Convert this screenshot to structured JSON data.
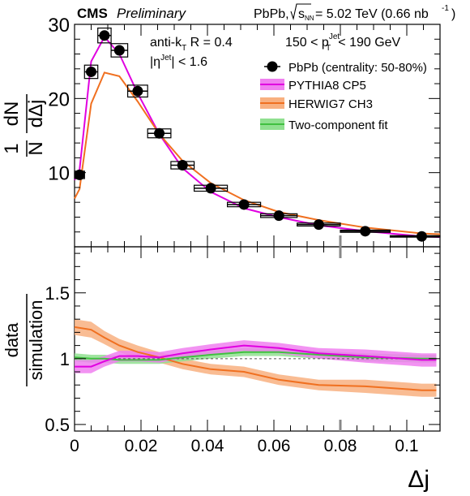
{
  "header": {
    "experiment": "CMS",
    "status": "Preliminary",
    "system": "PbPb,",
    "energy_prefix": "s",
    "energy_sub": "NN",
    "energy_value": "= 5.02 TeV (0.66 nb",
    "lumi_exp": "-1",
    "lumi_close": ")"
  },
  "annotations": {
    "algo_main": "anti-k",
    "algo_sub": "T",
    "algo_r": " R = 0.4",
    "eta_open": "|η",
    "eta_sup": "Jet",
    "eta_close": "| < 1.6",
    "pt_left": "150 < p",
    "pt_sup": "Jet",
    "pt_sub": "T",
    "pt_right": "< 190 GeV"
  },
  "colors": {
    "data": "#000000",
    "pythia": "#e000e0",
    "pythia_band": "#f080f0",
    "herwig": "#f07020",
    "herwig_band": "#f8b080",
    "fit": "#40c040",
    "fit_band": "#90e090"
  },
  "chart_data": [
    {
      "type": "line",
      "panel": "top",
      "ylabel_num": "1",
      "ylabel_den": "N",
      "ylabel_frac_num": "dN",
      "ylabel_frac_den": "dΔj",
      "xlim": [
        0,
        0.11
      ],
      "ylim": [
        0,
        30
      ],
      "yticks": [
        "10",
        "20",
        "30"
      ],
      "legend": {
        "placement": "top-right",
        "entries": [
          {
            "label": "PbPb (centrality: 50-80%)",
            "kind": "marker"
          },
          {
            "label": "PYTHIA8 CP5",
            "kind": "band",
            "series": "pythia"
          },
          {
            "label": "HERWIG7 CH3",
            "kind": "band",
            "series": "herwig"
          },
          {
            "label": "Two-component fit",
            "kind": "band",
            "series": "fit"
          }
        ]
      },
      "data_points": [
        {
          "x": 0.0015,
          "y": 9.7,
          "xlo": 0.0,
          "xhi": 0.003,
          "syst": 0.5
        },
        {
          "x": 0.005,
          "y": 23.6,
          "xlo": 0.003,
          "xhi": 0.007,
          "syst": 0.9
        },
        {
          "x": 0.009,
          "y": 28.5,
          "xlo": 0.007,
          "xhi": 0.011,
          "syst": 1.0
        },
        {
          "x": 0.0135,
          "y": 26.5,
          "xlo": 0.011,
          "xhi": 0.016,
          "syst": 0.9
        },
        {
          "x": 0.019,
          "y": 21.0,
          "xlo": 0.016,
          "xhi": 0.022,
          "syst": 0.8
        },
        {
          "x": 0.0255,
          "y": 15.3,
          "xlo": 0.022,
          "xhi": 0.029,
          "syst": 0.6
        },
        {
          "x": 0.0325,
          "y": 11.0,
          "xlo": 0.029,
          "xhi": 0.036,
          "syst": 0.5
        },
        {
          "x": 0.041,
          "y": 7.9,
          "xlo": 0.036,
          "xhi": 0.046,
          "syst": 0.4
        },
        {
          "x": 0.051,
          "y": 5.7,
          "xlo": 0.046,
          "xhi": 0.056,
          "syst": 0.3
        },
        {
          "x": 0.0615,
          "y": 4.2,
          "xlo": 0.056,
          "xhi": 0.067,
          "syst": 0.25
        },
        {
          "x": 0.0735,
          "y": 3.0,
          "xlo": 0.067,
          "xhi": 0.08,
          "syst": 0.2
        },
        {
          "x": 0.0875,
          "y": 2.1,
          "xlo": 0.08,
          "xhi": 0.095,
          "syst": 0.15
        },
        {
          "x": 0.1045,
          "y": 1.4,
          "xlo": 0.095,
          "xhi": 0.11,
          "syst": 0.1
        }
      ],
      "series": [
        {
          "id": "pythia",
          "name": "PYTHIA8 CP5",
          "x": [
            0.0,
            0.0015,
            0.005,
            0.009,
            0.0135,
            0.019,
            0.0255,
            0.0325,
            0.041,
            0.051,
            0.0615,
            0.0735,
            0.0875,
            0.1045,
            0.11
          ],
          "y": [
            9.0,
            10.4,
            25.0,
            28.3,
            26.0,
            20.7,
            15.2,
            10.6,
            7.4,
            5.2,
            4.0,
            2.9,
            2.1,
            1.4,
            1.3
          ]
        },
        {
          "id": "herwig",
          "name": "HERWIG7 CH3",
          "x": [
            0.0,
            0.0015,
            0.005,
            0.009,
            0.0135,
            0.019,
            0.0255,
            0.0325,
            0.041,
            0.051,
            0.0615,
            0.0735,
            0.0875,
            0.1045,
            0.11
          ],
          "y": [
            6.5,
            7.8,
            19.3,
            23.5,
            23.0,
            19.6,
            15.2,
            11.6,
            8.6,
            6.3,
            4.7,
            3.6,
            2.6,
            1.8,
            1.7
          ]
        }
      ]
    },
    {
      "type": "line",
      "panel": "bottom",
      "ylabel_num": "data",
      "ylabel_den": "simulation",
      "xlabel": "Δj",
      "xlim": [
        0,
        0.11
      ],
      "ylim": [
        0.45,
        1.85
      ],
      "yticks": [
        "0.5",
        "1",
        "1.5"
      ],
      "xticks": [
        "0",
        "0.02",
        "0.04",
        "0.06",
        "0.08",
        "0.1"
      ],
      "reference_line": 1,
      "series": [
        {
          "id": "pythia",
          "name": "PYTHIA8 CP5",
          "x": [
            0.0,
            0.005,
            0.009,
            0.0135,
            0.019,
            0.0255,
            0.0325,
            0.041,
            0.051,
            0.0615,
            0.0735,
            0.0875,
            0.1045
          ],
          "y": [
            0.94,
            0.94,
            0.98,
            1.02,
            1.02,
            1.01,
            1.04,
            1.07,
            1.1,
            1.08,
            1.04,
            1.02,
            0.99
          ],
          "err": [
            0.05,
            0.05,
            0.04,
            0.04,
            0.04,
            0.04,
            0.04,
            0.04,
            0.04,
            0.04,
            0.04,
            0.05,
            0.05
          ]
        },
        {
          "id": "herwig",
          "name": "HERWIG7 CH3",
          "x": [
            0.0,
            0.005,
            0.009,
            0.0135,
            0.019,
            0.0255,
            0.0325,
            0.041,
            0.051,
            0.0615,
            0.0735,
            0.0875,
            0.1045
          ],
          "y": [
            1.24,
            1.22,
            1.16,
            1.1,
            1.05,
            1.01,
            0.96,
            0.92,
            0.9,
            0.84,
            0.8,
            0.79,
            0.76
          ],
          "err": [
            0.06,
            0.06,
            0.05,
            0.05,
            0.05,
            0.04,
            0.04,
            0.04,
            0.04,
            0.04,
            0.04,
            0.05,
            0.05
          ]
        },
        {
          "id": "fit",
          "name": "Two-component fit",
          "x": [
            0.0,
            0.005,
            0.009,
            0.0135,
            0.019,
            0.0255,
            0.0325,
            0.041,
            0.051,
            0.0615,
            0.0735,
            0.0875,
            0.1045
          ],
          "y": [
            1.01,
            1.0,
            1.0,
            0.99,
            0.99,
            0.99,
            1.01,
            1.03,
            1.05,
            1.05,
            1.03,
            1.01,
            1.0
          ],
          "err": [
            0.03,
            0.03,
            0.03,
            0.03,
            0.03,
            0.03,
            0.03,
            0.03,
            0.03,
            0.03,
            0.03,
            0.03,
            0.03
          ]
        }
      ]
    }
  ]
}
